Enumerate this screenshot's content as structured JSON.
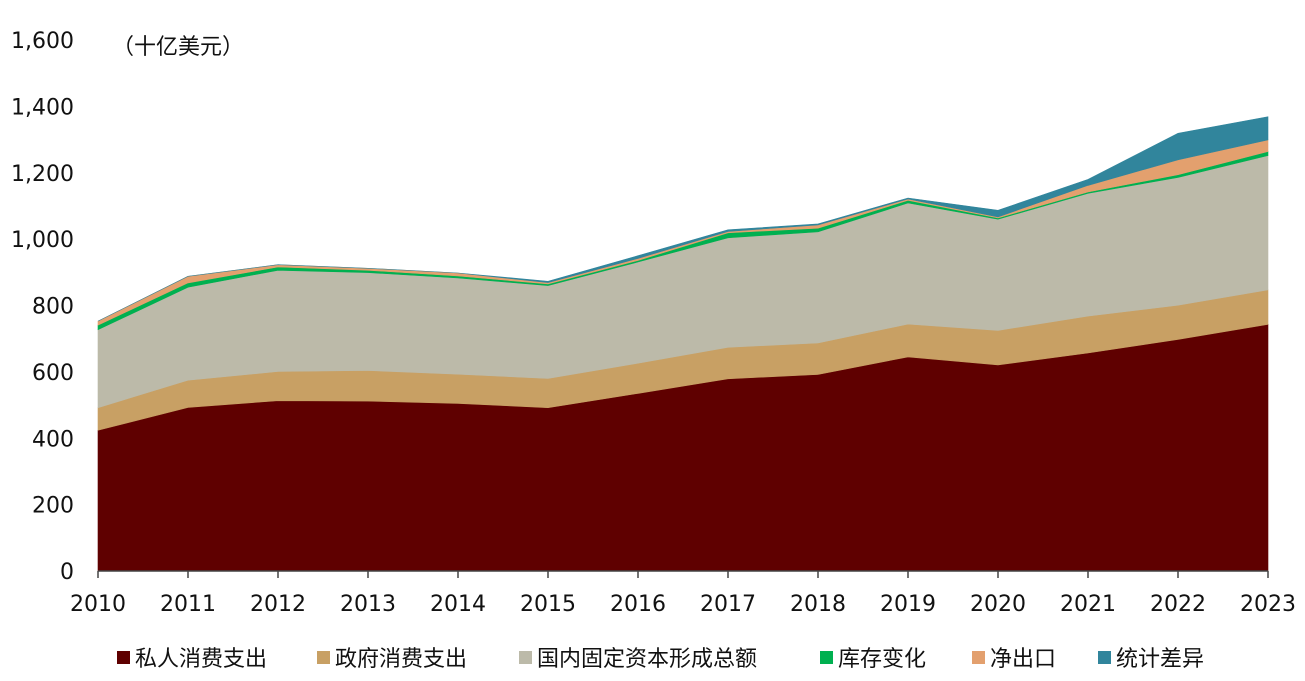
{
  "chart_data": {
    "type": "area",
    "stacked": true,
    "unit_label": "（十亿美元）",
    "x": [
      "2010",
      "2011",
      "2012",
      "2013",
      "2014",
      "2015",
      "2016",
      "2017",
      "2018",
      "2019",
      "2020",
      "2021",
      "2022",
      "2023"
    ],
    "ylim": [
      0,
      1600
    ],
    "yticks": [
      0,
      200,
      400,
      600,
      800,
      1000,
      1200,
      1400,
      1600
    ],
    "ytick_labels": [
      "0",
      "200",
      "400",
      "600",
      "800",
      "1,000",
      "1,200",
      "1,400",
      "1,600"
    ],
    "grid": false,
    "legend_position": "bottom",
    "series": [
      {
        "name": "私人消费支出",
        "color": "#5f0000",
        "values": [
          424,
          493,
          513,
          512,
          505,
          492,
          535,
          579,
          592,
          645,
          621,
          657,
          698,
          743
        ]
      },
      {
        "name": "政府消费支出",
        "color": "#c8a064",
        "values": [
          68,
          82,
          88,
          92,
          88,
          88,
          91,
          95,
          95,
          99,
          104,
          111,
          103,
          104
        ]
      },
      {
        "name": "国内固定资本形成总额",
        "color": "#bcbaa9",
        "values": [
          235,
          280,
          305,
          295,
          290,
          280,
          305,
          330,
          335,
          365,
          335,
          370,
          385,
          405
        ]
      },
      {
        "name": "库存变化",
        "color": "#00b050",
        "values": [
          14,
          13,
          10,
          7,
          6,
          5,
          5,
          15,
          11,
          8,
          4,
          4,
          8,
          12
        ]
      },
      {
        "name": "净出口",
        "color": "#e3a06e",
        "values": [
          12,
          20,
          7,
          6,
          9,
          4,
          6,
          4,
          10,
          4,
          3,
          20,
          45,
          35
        ]
      },
      {
        "name": "统计差异",
        "color": "#31859c",
        "values": [
          0,
          0,
          0,
          0,
          0,
          4,
          8,
          5,
          3,
          3,
          20,
          18,
          80,
          70
        ]
      }
    ]
  }
}
